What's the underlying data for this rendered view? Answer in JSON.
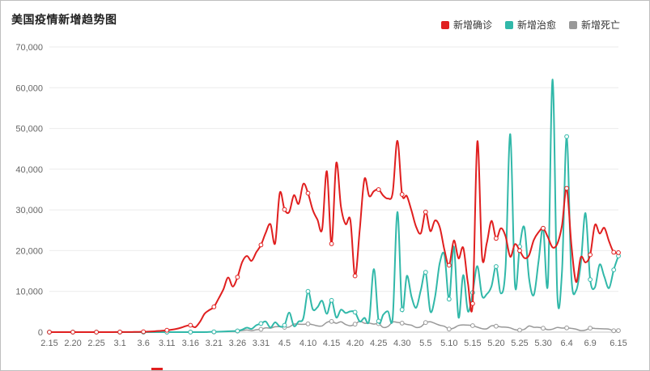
{
  "header": {
    "title": "美国疫情新增趋势图"
  },
  "legend": {
    "items": [
      {
        "label": "新增确诊",
        "color": "#e01f1f"
      },
      {
        "label": "新增治愈",
        "color": "#31b8a9"
      },
      {
        "label": "新增死亡",
        "color": "#999999"
      }
    ]
  },
  "chart_data": {
    "type": "line",
    "title": "美国疫情新增趋势图",
    "grid": true,
    "legend_position": "top-right",
    "smooth": true,
    "marker_every": 5,
    "ylim": [
      0,
      70000
    ],
    "yticks": [
      0,
      10000,
      20000,
      30000,
      40000,
      50000,
      60000,
      70000
    ],
    "xtick_labels": [
      "2.15",
      "2.20",
      "2.25",
      "3.1",
      "3.6",
      "3.11",
      "3.16",
      "3.21",
      "3.26",
      "3.31",
      "4.5",
      "4.10",
      "4.15",
      "4.20",
      "4.25",
      "4.30",
      "5.5",
      "5.10",
      "5.15",
      "5.20",
      "5.25",
      "5.30",
      "6.4",
      "6.9",
      "6.15"
    ],
    "x": [
      "2.15",
      "2.16",
      "2.17",
      "2.18",
      "2.19",
      "2.20",
      "2.21",
      "2.22",
      "2.23",
      "2.24",
      "2.25",
      "2.26",
      "2.27",
      "2.28",
      "2.29",
      "3.1",
      "3.2",
      "3.3",
      "3.4",
      "3.5",
      "3.6",
      "3.7",
      "3.8",
      "3.9",
      "3.10",
      "3.11",
      "3.12",
      "3.13",
      "3.14",
      "3.15",
      "3.16",
      "3.17",
      "3.18",
      "3.19",
      "3.20",
      "3.21",
      "3.22",
      "3.23",
      "3.24",
      "3.25",
      "3.26",
      "3.27",
      "3.28",
      "3.29",
      "3.30",
      "3.31",
      "4.1",
      "4.2",
      "4.3",
      "4.4",
      "4.5",
      "4.6",
      "4.7",
      "4.8",
      "4.9",
      "4.10",
      "4.11",
      "4.12",
      "4.13",
      "4.14",
      "4.15",
      "4.16",
      "4.17",
      "4.18",
      "4.19",
      "4.20",
      "4.21",
      "4.22",
      "4.23",
      "4.24",
      "4.25",
      "4.26",
      "4.27",
      "4.28",
      "4.29",
      "4.30",
      "5.1",
      "5.2",
      "5.3",
      "5.4",
      "5.5",
      "5.6",
      "5.7",
      "5.8",
      "5.9",
      "5.10",
      "5.11",
      "5.12",
      "5.13",
      "5.14",
      "5.15",
      "5.16",
      "5.17",
      "5.18",
      "5.19",
      "5.20",
      "5.21",
      "5.22",
      "5.23",
      "5.24",
      "5.25",
      "5.26",
      "5.27",
      "5.28",
      "5.29",
      "5.30",
      "5.31",
      "6.1",
      "6.2",
      "6.3",
      "6.4",
      "6.5",
      "6.6",
      "6.7",
      "6.8",
      "6.9",
      "6.10",
      "6.11",
      "6.12",
      "6.13",
      "6.14",
      "6.15"
    ],
    "series": [
      {
        "name": "新增确诊",
        "id": "confirmed",
        "color": "#e01f1f",
        "values": [
          0,
          0,
          0,
          0,
          0,
          0,
          0,
          0,
          0,
          0,
          0,
          0,
          5,
          5,
          10,
          15,
          20,
          25,
          35,
          60,
          95,
          120,
          180,
          270,
          350,
          450,
          600,
          800,
          1100,
          1500,
          1700,
          1200,
          2500,
          4500,
          5400,
          6200,
          8300,
          10500,
          13400,
          11200,
          13500,
          17200,
          18700,
          17500,
          19600,
          21400,
          24400,
          26500,
          21800,
          34200,
          30100,
          29500,
          33600,
          31500,
          36400,
          34100,
          30000,
          27600,
          25300,
          39500,
          21700,
          41500,
          30800,
          26500,
          27500,
          13800,
          25300,
          37600,
          33400,
          34600,
          35000,
          33500,
          32800,
          34200,
          47000,
          33800,
          33400,
          29800,
          25800,
          24300,
          29500,
          24800,
          27400,
          25800,
          20200,
          16400,
          22500,
          18100,
          20700,
          12000,
          7000,
          46800,
          18600,
          21800,
          27300,
          23000,
          25500,
          23500,
          18500,
          21600,
          20000,
          18200,
          18900,
          22600,
          24500,
          25500,
          23300,
          20800,
          21700,
          26200,
          35300,
          21400,
          12300,
          18400,
          17100,
          19000,
          26300,
          24200,
          25600,
          22300,
          19600,
          19500
        ]
      },
      {
        "name": "新增治愈",
        "id": "cured",
        "color": "#31b8a9",
        "values": [
          0,
          0,
          0,
          0,
          0,
          0,
          0,
          0,
          0,
          0,
          0,
          0,
          0,
          0,
          0,
          0,
          0,
          0,
          0,
          0,
          0,
          0,
          0,
          0,
          0,
          0,
          0,
          0,
          0,
          0,
          0,
          0,
          0,
          0,
          50,
          80,
          100,
          150,
          200,
          250,
          300,
          600,
          1100,
          800,
          1700,
          2100,
          2600,
          1100,
          2400,
          1400,
          1700,
          4800,
          1500,
          2600,
          3400,
          10000,
          5600,
          6100,
          7700,
          4500,
          7800,
          3600,
          5500,
          4700,
          5100,
          4900,
          2600,
          3500,
          2900,
          15500,
          2700,
          4300,
          5100,
          3400,
          29500,
          5500,
          13800,
          8700,
          6000,
          10400,
          14700,
          5100,
          8600,
          16900,
          19000,
          8100,
          21000,
          3600,
          14000,
          5100,
          9700,
          16200,
          8900,
          9300,
          11200,
          16100,
          9500,
          16000,
          48600,
          11500,
          21000,
          25700,
          13200,
          9100,
          17200,
          25500,
          12000,
          62000,
          9300,
          14900,
          48000,
          13500,
          10200,
          16800,
          29200,
          12900,
          11000,
          16600,
          13600,
          10800,
          15300,
          18700
        ]
      },
      {
        "name": "新增死亡",
        "id": "deaths",
        "color": "#999999",
        "values": [
          0,
          0,
          0,
          0,
          0,
          0,
          0,
          0,
          0,
          0,
          0,
          0,
          0,
          0,
          0,
          0,
          0,
          1,
          2,
          3,
          1,
          2,
          3,
          4,
          4,
          4,
          2,
          5,
          6,
          8,
          12,
          16,
          23,
          41,
          57,
          46,
          111,
          140,
          225,
          247,
          268,
          400,
          525,
          363,
          573,
          700,
          1050,
          968,
          1321,
          1331,
          1165,
          1255,
          1970,
          1940,
          1900,
          2035,
          1830,
          1528,
          1535,
          2407,
          2620,
          2174,
          2535,
          1867,
          1561,
          1939,
          2674,
          2195,
          2210,
          1975,
          2065,
          1150,
          1384,
          2470,
          2390,
          2201,
          1897,
          1691,
          1154,
          1324,
          2350,
          2528,
          2129,
          1687,
          1422,
          750,
          1008,
          1630,
          1772,
          1715,
          1595,
          1218,
          865,
          808,
          1552,
          1461,
          1263,
          1208,
          1035,
          592,
          500,
          693,
          1505,
          1199,
          1175,
          960,
          605,
          730,
          1134,
          997,
          1036,
          921,
          709,
          373,
          497,
          979,
          903,
          841,
          801,
          712,
          330,
          380
        ]
      }
    ]
  }
}
